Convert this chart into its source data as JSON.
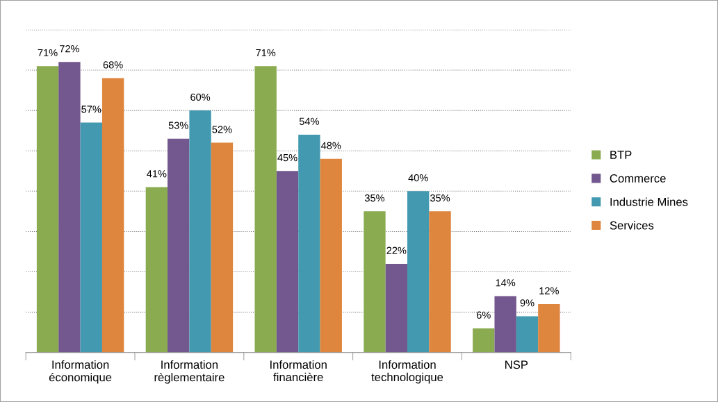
{
  "chart_data": {
    "type": "bar",
    "categories": [
      "Information\néconomique",
      "Information\nrèglementaire",
      "Information\nfinancière",
      "Information\ntechnologique",
      "NSP"
    ],
    "series": [
      {
        "name": "BTP",
        "color": "#8aab4f",
        "values": [
          71,
          41,
          71,
          35,
          6
        ],
        "value_labels": [
          "71%",
          "41%",
          "71%",
          "35%",
          "6%"
        ]
      },
      {
        "name": "Commerce",
        "color": "#72588e",
        "values": [
          72,
          53,
          45,
          22,
          14
        ],
        "value_labels": [
          "72%",
          "53%",
          "45%",
          "22%",
          "14%"
        ]
      },
      {
        "name": "Industrie Mines",
        "color": "#4399b0",
        "values": [
          57,
          60,
          54,
          40,
          9
        ],
        "value_labels": [
          "57%",
          "60%",
          "54%",
          "40%",
          "9%"
        ]
      },
      {
        "name": "Services",
        "color": "#de853e",
        "values": [
          68,
          52,
          48,
          35,
          12
        ],
        "value_labels": [
          "68%",
          "52%",
          "48%",
          "35%",
          "12%"
        ]
      }
    ],
    "ylim": [
      0,
      80
    ],
    "yticks": [
      {
        "value": 0,
        "label": null
      },
      {
        "value": 10,
        "label": null
      },
      {
        "value": 20,
        "label": null
      },
      {
        "value": 30,
        "label": null
      },
      {
        "value": 40,
        "label": null
      },
      {
        "value": 50,
        "label": null
      },
      {
        "value": 60,
        "label": null
      },
      {
        "value": 70,
        "label": null
      },
      {
        "value": 80,
        "label": null
      }
    ],
    "grid": "y",
    "legend": "right",
    "tick_labels": "x"
  }
}
